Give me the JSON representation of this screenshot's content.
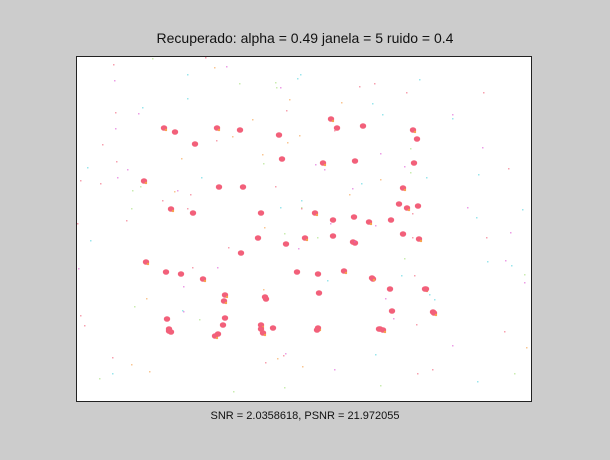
{
  "figure": {
    "title": "Recuperado: alpha = 0.49 janela = 5 ruido = 0.4",
    "xlabel": "SNR = 2.0358618, PSNR = 21.972055"
  },
  "image": {
    "background": "#ffffff",
    "blob_color": "#f2607a",
    "blob_accent": "#f7a04a",
    "noise_colors": [
      "#e05cd6",
      "#56d6e0",
      "#f2607a",
      "#f7a04a",
      "#a7e07c"
    ]
  }
}
